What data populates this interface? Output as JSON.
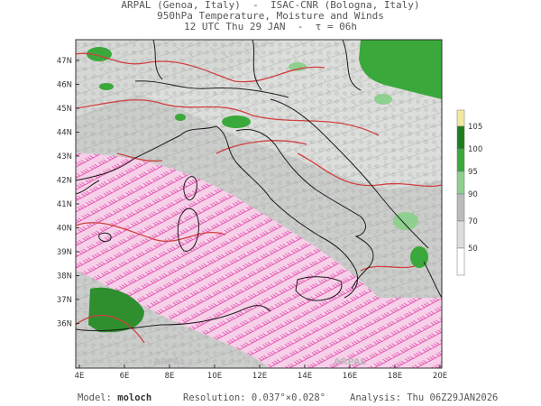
{
  "header": {
    "line1": "ARPAL (Genoa, Italy)  -  ISAC-CNR (Bologna, Italy)",
    "line2": "950hPa Temperature, Moisture and Winds",
    "line3": "12 UTC Thu 29 JAN  -  τ = 06h"
  },
  "map": {
    "lat_labels": [
      "47N",
      "46N",
      "45N",
      "44N",
      "43N",
      "42N",
      "41N",
      "40N",
      "39N",
      "38N",
      "37N",
      "36N"
    ],
    "lon_labels": [
      "4E",
      "6E",
      "8E",
      "10E",
      "12E",
      "14E",
      "16E",
      "18E",
      "20E"
    ],
    "watermark_left": "ARPAL",
    "watermark_right": "ARPAL",
    "colors": {
      "land_gray": "#c9cbc9",
      "moist_green": "#3aa83a",
      "barb_magenta": "#e040a8",
      "temp_contour": "#d04040",
      "coast": "#1a1a1a"
    }
  },
  "colorbar": {
    "labels": [
      "105",
      "100",
      "95",
      "90",
      "70",
      "50"
    ],
    "colors": [
      "#f2e9a0",
      "#1e7d1e",
      "#3aa83a",
      "#8fcf8f",
      "#b9bcb9",
      "#dddddd",
      "#ffffff"
    ]
  },
  "footer": {
    "model_label": "Model:",
    "model_value": "moloch",
    "resolution_label": "Resolution:",
    "resolution_value": "0.037°×0.028°",
    "analysis_label": "Analysis:",
    "analysis_value": "Thu 06Z29JAN2026"
  }
}
